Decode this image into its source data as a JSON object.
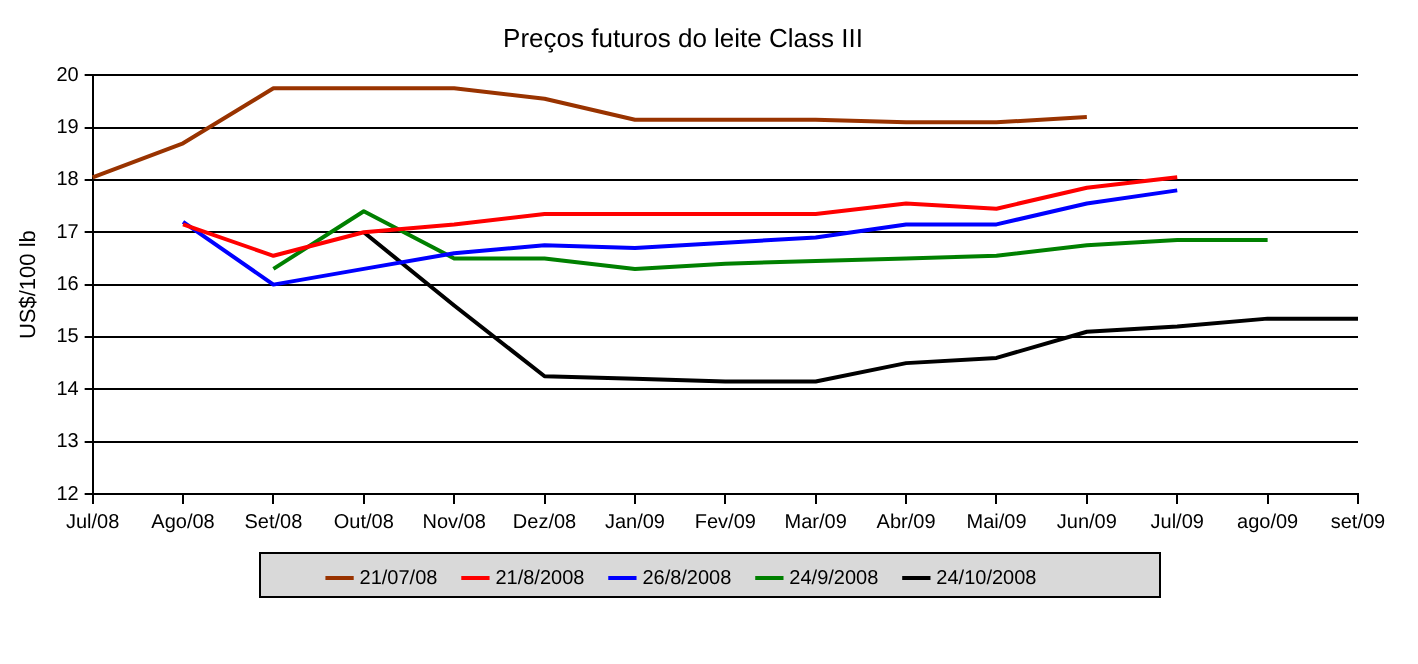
{
  "chart_data": {
    "type": "line",
    "title": "Preços futuros do leite Class III",
    "ylabel": "US$/100 lb",
    "categories": [
      "Jul/08",
      "Ago/08",
      "Set/08",
      "Out/08",
      "Nov/08",
      "Dez/08",
      "Jan/09",
      "Fev/09",
      "Mar/09",
      "Abr/09",
      "Mai/09",
      "Jun/09",
      "Jul/09",
      "ago/09",
      "set/09"
    ],
    "series": [
      {
        "name": "21/07/08",
        "color": "#993300",
        "values": [
          18.05,
          18.7,
          19.75,
          19.75,
          19.75,
          19.55,
          19.15,
          19.15,
          19.15,
          19.1,
          19.1,
          19.2,
          null,
          null,
          null
        ]
      },
      {
        "name": "21/8/2008",
        "color": "#ff0000",
        "values": [
          null,
          17.15,
          16.55,
          17.0,
          17.15,
          17.35,
          17.35,
          17.35,
          17.35,
          17.55,
          17.45,
          17.85,
          18.05,
          null,
          null
        ]
      },
      {
        "name": "26/8/2008",
        "color": "#0000ff",
        "values": [
          null,
          17.2,
          16.0,
          16.3,
          16.6,
          16.75,
          16.7,
          16.8,
          16.9,
          17.15,
          17.15,
          17.55,
          17.8,
          null,
          null
        ]
      },
      {
        "name": "24/9/2008",
        "color": "#008000",
        "values": [
          null,
          null,
          16.3,
          17.4,
          16.5,
          16.5,
          16.3,
          16.4,
          16.45,
          16.5,
          16.55,
          16.75,
          16.85,
          16.85,
          null
        ]
      },
      {
        "name": "24/10/2008",
        "color": "#000000",
        "values": [
          null,
          null,
          null,
          17.0,
          15.6,
          14.25,
          14.2,
          14.15,
          14.15,
          14.5,
          14.6,
          15.1,
          15.2,
          15.35,
          15.35
        ]
      }
    ],
    "ylim": [
      12,
      20
    ],
    "yticks": [
      12,
      13,
      14,
      15,
      16,
      17,
      18,
      19,
      20
    ],
    "grid": "y",
    "legend": "bottom",
    "marker": "none",
    "line_style": "solid"
  }
}
